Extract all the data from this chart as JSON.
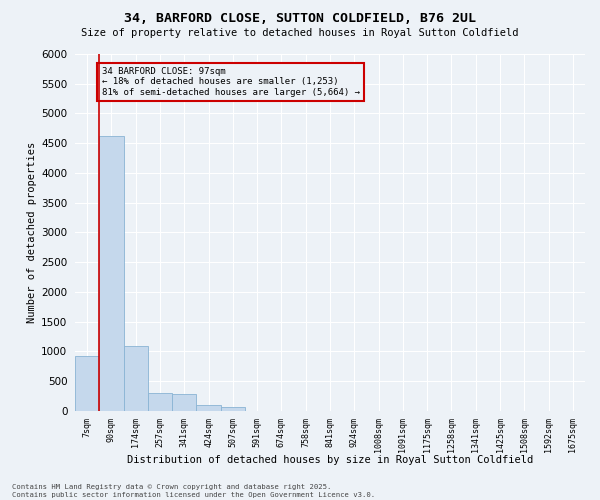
{
  "title1": "34, BARFORD CLOSE, SUTTON COLDFIELD, B76 2UL",
  "title2": "Size of property relative to detached houses in Royal Sutton Coldfield",
  "xlabel": "Distribution of detached houses by size in Royal Sutton Coldfield",
  "ylabel": "Number of detached properties",
  "bin_labels": [
    "7sqm",
    "90sqm",
    "174sqm",
    "257sqm",
    "341sqm",
    "424sqm",
    "507sqm",
    "591sqm",
    "674sqm",
    "758sqm",
    "841sqm",
    "924sqm",
    "1008sqm",
    "1091sqm",
    "1175sqm",
    "1258sqm",
    "1341sqm",
    "1425sqm",
    "1508sqm",
    "1592sqm",
    "1675sqm"
  ],
  "bar_values": [
    920,
    4620,
    1090,
    300,
    290,
    100,
    75,
    0,
    0,
    0,
    0,
    0,
    0,
    0,
    0,
    0,
    0,
    0,
    0,
    0,
    0
  ],
  "bar_color": "#c5d8ec",
  "bar_edge_color": "#8ab4d4",
  "vline_color": "#cc0000",
  "ylim": [
    0,
    6000
  ],
  "yticks": [
    0,
    500,
    1000,
    1500,
    2000,
    2500,
    3000,
    3500,
    4000,
    4500,
    5000,
    5500,
    6000
  ],
  "annotation_title": "34 BARFORD CLOSE: 97sqm",
  "annotation_line1": "← 18% of detached houses are smaller (1,253)",
  "annotation_line2": "81% of semi-detached houses are larger (5,664) →",
  "annotation_box_color": "#cc0000",
  "footer_line1": "Contains HM Land Registry data © Crown copyright and database right 2025.",
  "footer_line2": "Contains public sector information licensed under the Open Government Licence v3.0.",
  "bg_color": "#edf2f7",
  "grid_color": "#ffffff"
}
